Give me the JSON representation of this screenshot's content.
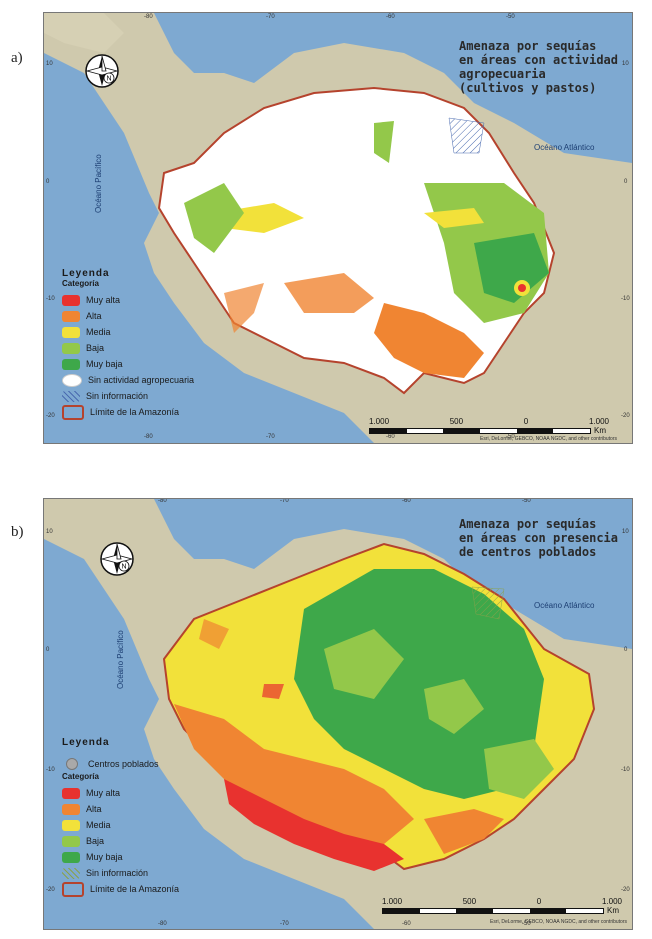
{
  "panels": [
    {
      "tag": "a)",
      "title": "Amenaza por sequías\nen áreas con actividad\nagropecuaria\n(cultivos y pastos)",
      "ocean_atlantic": "Océano Atlántico",
      "ocean_pacific": "Océano Pacífico",
      "top_ticks": [
        "-80",
        "-70",
        "-60",
        "-50"
      ],
      "bottom_ticks": [
        "-80",
        "-70",
        "-60",
        "-50"
      ],
      "right_ticks": [
        "10",
        "0",
        "-10",
        "-20"
      ],
      "left_ticks": [
        "10",
        "0",
        "-10",
        "-20"
      ],
      "legend": {
        "heading": "Leyenda",
        "subheading": "Categoría",
        "items": [
          {
            "label": "Muy alta",
            "color": "#e8322f"
          },
          {
            "label": "Alta",
            "color": "#f08532"
          },
          {
            "label": "Media",
            "color": "#f2e13a"
          },
          {
            "label": "Baja",
            "color": "#93c84a"
          },
          {
            "label": "Muy baja",
            "color": "#3ea84a"
          },
          {
            "label": "Sin actividad agropecuaria",
            "color": "#ffffff"
          },
          {
            "label": "Sin información",
            "color": "hatch"
          },
          {
            "label": "Límite de la Amazonía",
            "color": "outline"
          }
        ]
      },
      "scale": {
        "labels": [
          "1.000",
          "500",
          "0",
          "1.000"
        ],
        "unit": "Km"
      },
      "credit": "Esri, DeLorme, GEBCO, NOAA NGDC, and other contributors"
    },
    {
      "tag": "b)",
      "title": "Amenaza por sequías\nen áreas con presencia\nde centros poblados",
      "ocean_atlantic": "Océano Atlántico",
      "ocean_pacific": "Océano Pacífico",
      "top_ticks": [
        "-80",
        "-70",
        "-60",
        "-50"
      ],
      "bottom_ticks": [
        "-80",
        "-70",
        "-60",
        "-50"
      ],
      "right_ticks": [
        "10",
        "0",
        "-10",
        "-20"
      ],
      "left_ticks": [
        "10",
        "0",
        "-10",
        "-20"
      ],
      "legend": {
        "heading": "Leyenda",
        "centros_label": "Centros poblados",
        "subheading": "Categoría",
        "items": [
          {
            "label": "Muy alta",
            "color": "#e8322f"
          },
          {
            "label": "Alta",
            "color": "#f08532"
          },
          {
            "label": "Media",
            "color": "#f2e13a"
          },
          {
            "label": "Baja",
            "color": "#93c84a"
          },
          {
            "label": "Muy baja",
            "color": "#3ea84a"
          },
          {
            "label": "Sin información",
            "color": "hatch"
          },
          {
            "label": "Límite de la Amazonía",
            "color": "outline"
          }
        ]
      },
      "scale": {
        "labels": [
          "1.000",
          "500",
          "0",
          "1.000"
        ],
        "unit": "Km"
      },
      "credit": "Esri, DeLorme, GEBCO, NOAA NGDC, and other contributors"
    }
  ],
  "compass_letter": "N"
}
